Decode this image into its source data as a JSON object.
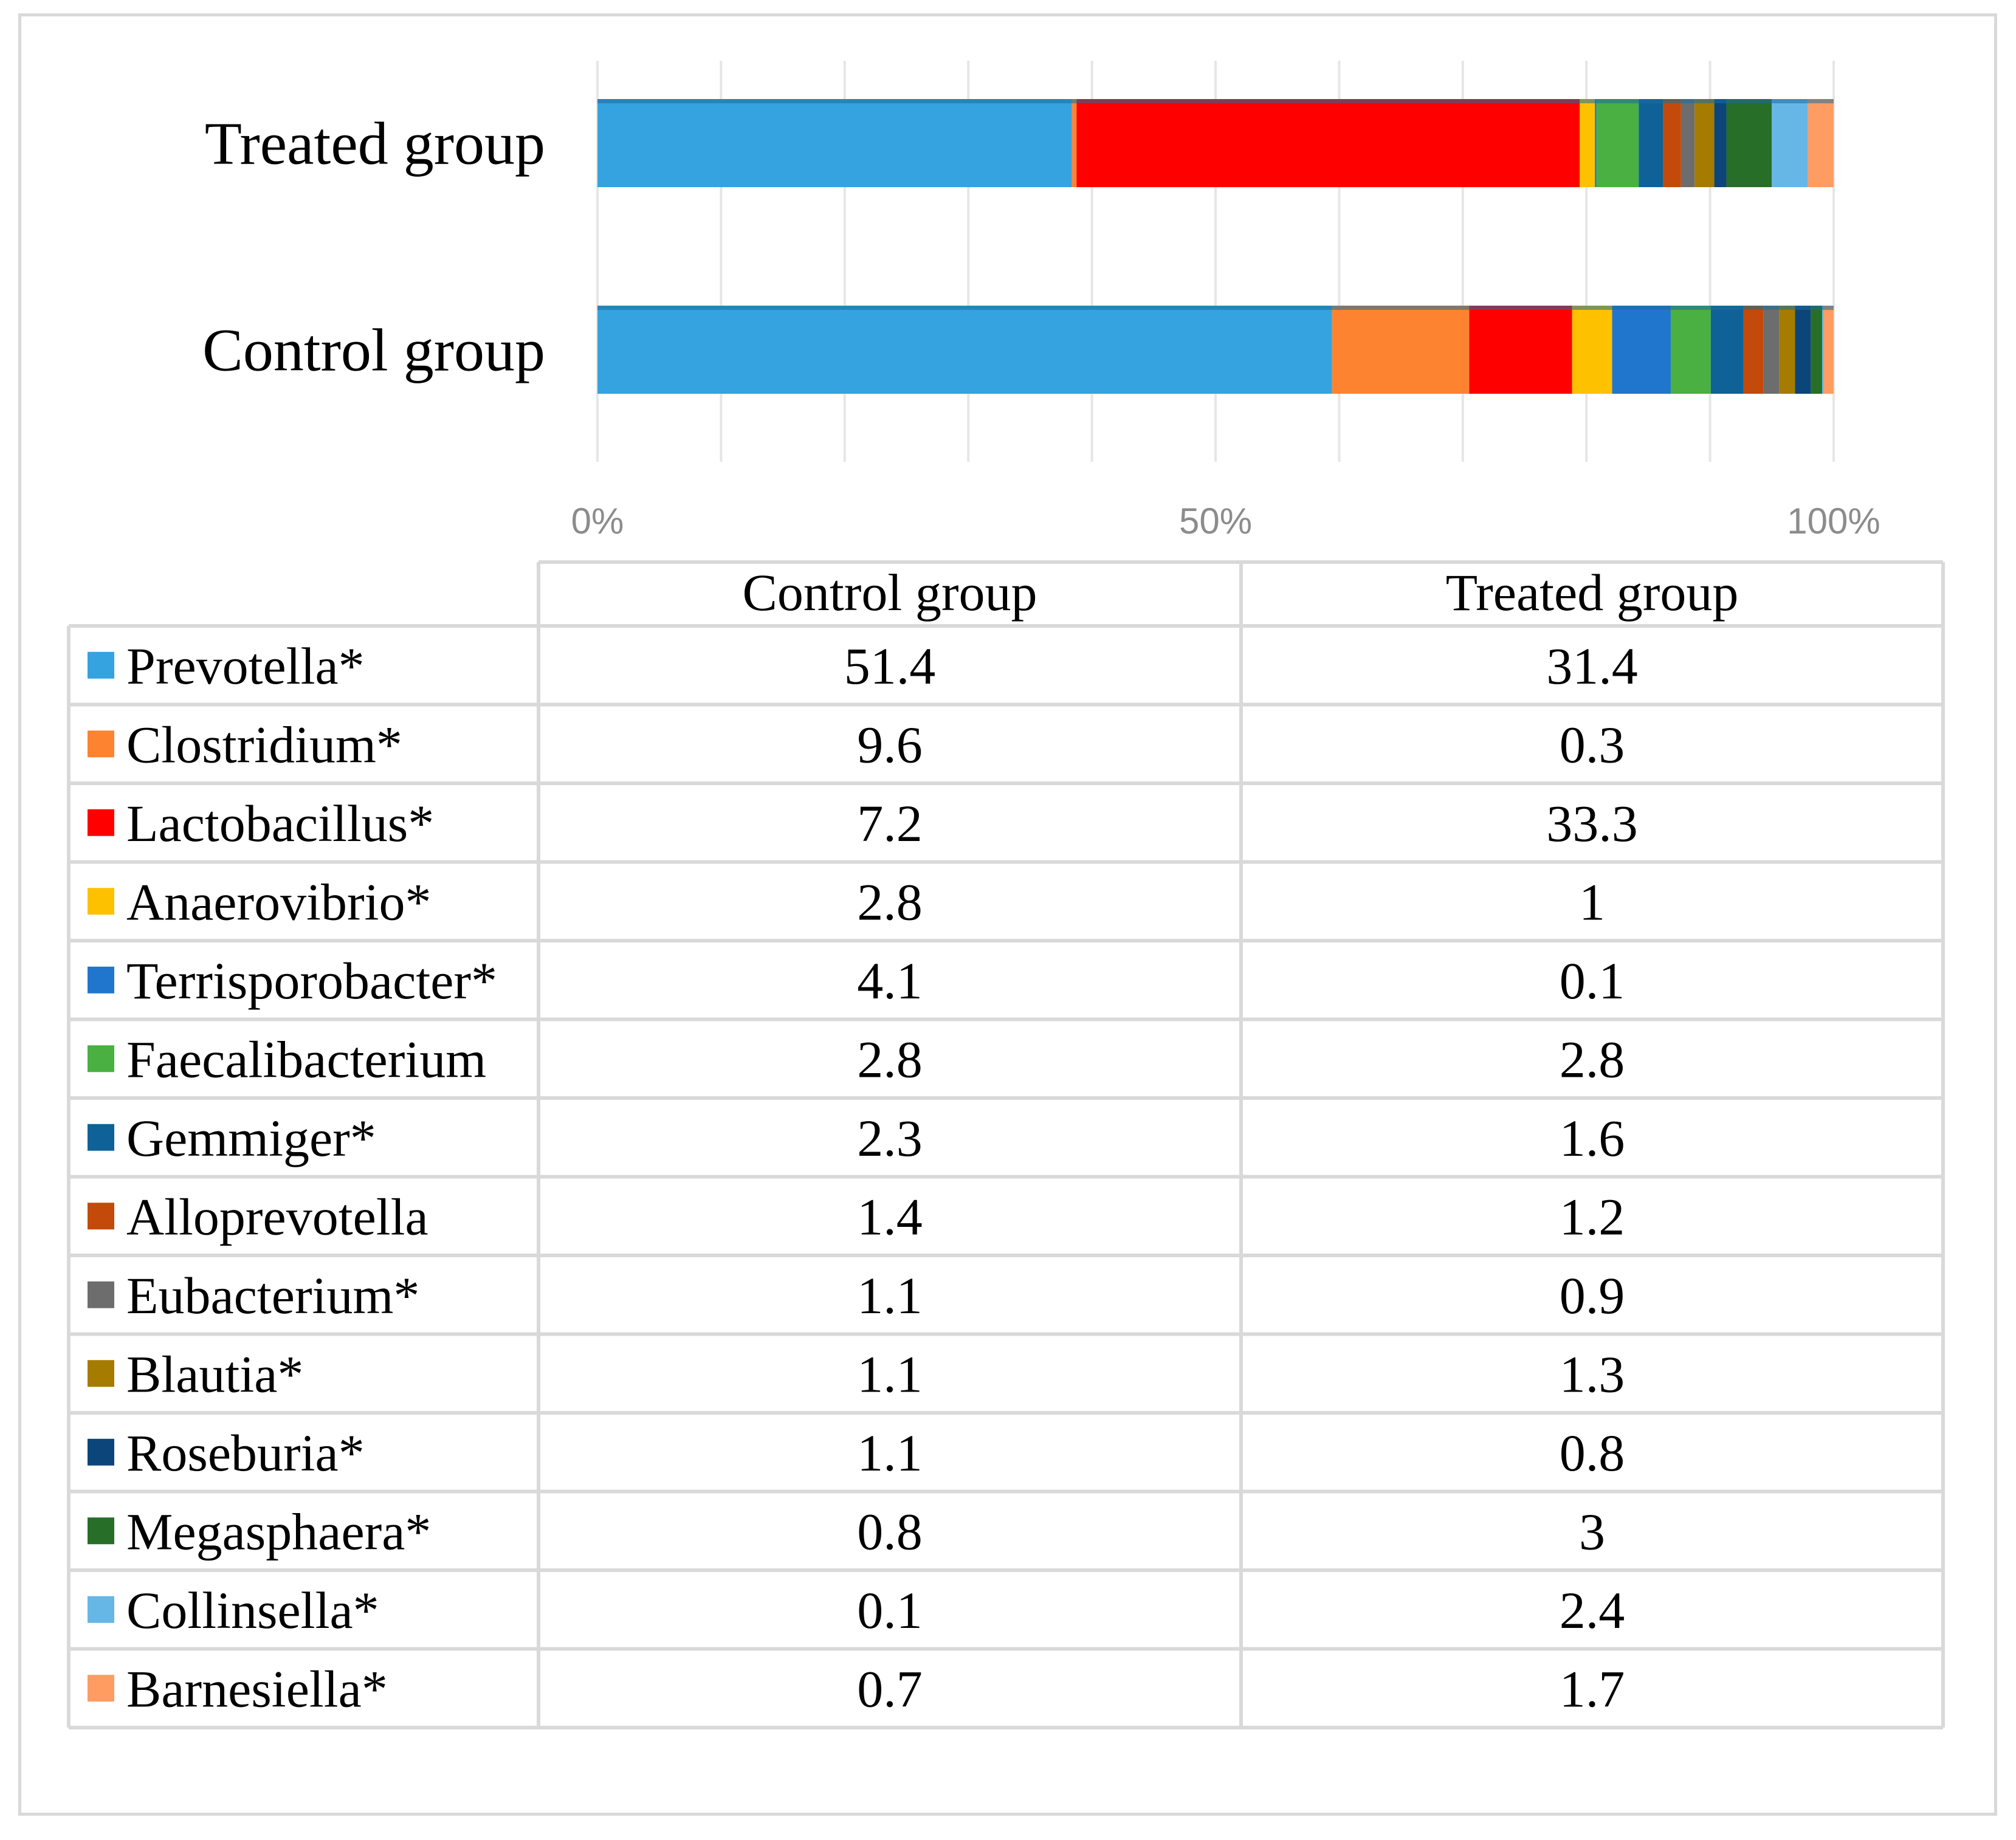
{
  "chart_data": {
    "type": "bar",
    "orientation": "horizontal",
    "stacked": "percent",
    "title": "",
    "xlabel": "",
    "ylabel": "",
    "categories": [
      "Control group",
      "Treated group"
    ],
    "x_ticks": [
      "0%",
      "50%",
      "100%"
    ],
    "xlim": [
      0,
      100
    ],
    "grid": true,
    "legend": "data-table-below",
    "series": [
      {
        "name": "Prevotella*",
        "color": "#34a3e0",
        "values": [
          51.4,
          31.4
        ]
      },
      {
        "name": "Clostridium*",
        "color": "#fd8330",
        "values": [
          9.6,
          0.3
        ]
      },
      {
        "name": "Lactobacillus*",
        "color": "#fe0000",
        "values": [
          7.2,
          33.3
        ]
      },
      {
        "name": "Anaerovibrio*",
        "color": "#fec100",
        "values": [
          2.8,
          1
        ]
      },
      {
        "name": "Terrisporobacter*",
        "color": "#1f76cc",
        "values": [
          4.1,
          0.1
        ]
      },
      {
        "name": "Faecalibacterium",
        "color": "#49b041",
        "values": [
          2.8,
          2.8
        ]
      },
      {
        "name": "Gemmiger*",
        "color": "#0e6298",
        "values": [
          2.3,
          1.6
        ]
      },
      {
        "name": "Alloprevotella",
        "color": "#c34a0b",
        "values": [
          1.4,
          1.2
        ]
      },
      {
        "name": "Eubacterium*",
        "color": "#6d6d6d",
        "values": [
          1.1,
          0.9
        ]
      },
      {
        "name": "Blautia*",
        "color": "#a57b00",
        "values": [
          1.1,
          1.3
        ]
      },
      {
        "name": "Roseburia*",
        "color": "#0c4579",
        "values": [
          1.1,
          0.8
        ]
      },
      {
        "name": "Megasphaera*",
        "color": "#276e28",
        "values": [
          0.8,
          3
        ]
      },
      {
        "name": "Collinsella*",
        "color": "#66b6e6",
        "values": [
          0.1,
          2.4
        ]
      },
      {
        "name": "Barnesiella*",
        "color": "#fe9c62",
        "values": [
          0.7,
          1.7
        ]
      }
    ],
    "table": {
      "columns": [
        "Control group",
        "Treated group"
      ],
      "rows": [
        [
          "Prevotella*",
          "51.4",
          "31.4"
        ],
        [
          "Clostridium*",
          "9.6",
          "0.3"
        ],
        [
          "Lactobacillus*",
          "7.2",
          "33.3"
        ],
        [
          "Anaerovibrio*",
          "2.8",
          "1"
        ],
        [
          "Terrisporobacter*",
          "4.1",
          "0.1"
        ],
        [
          "Faecalibacterium",
          "2.8",
          "2.8"
        ],
        [
          "Gemmiger*",
          "2.3",
          "1.6"
        ],
        [
          "Alloprevotella",
          "1.4",
          "1.2"
        ],
        [
          "Eubacterium*",
          "1.1",
          "0.9"
        ],
        [
          "Blautia*",
          "1.1",
          "1.3"
        ],
        [
          "Roseburia*",
          "1.1",
          "0.8"
        ],
        [
          "Megasphaera*",
          "0.8",
          "3"
        ],
        [
          "Collinsella*",
          "0.1",
          "2.4"
        ],
        [
          "Barnesiella*",
          "0.7",
          "1.7"
        ]
      ]
    }
  }
}
